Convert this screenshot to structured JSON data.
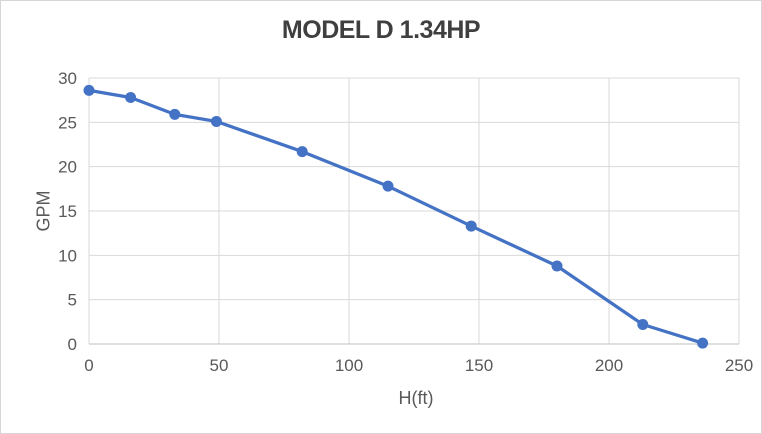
{
  "frame": {
    "border_color": "#d6d6d6",
    "background": "#ffffff"
  },
  "chart_data": {
    "type": "line",
    "title": "MODEL D 1.34HP",
    "xlabel": "H(ft)",
    "ylabel": "GPM",
    "x": [
      0,
      16,
      33,
      49,
      82,
      115,
      147,
      180,
      213,
      236
    ],
    "y": [
      28.6,
      27.8,
      25.9,
      25.1,
      21.7,
      17.8,
      13.3,
      8.8,
      2.2,
      0.1
    ],
    "xlim": [
      0,
      250
    ],
    "ylim": [
      0,
      30
    ],
    "x_ticks": [
      0,
      50,
      100,
      150,
      200,
      250
    ],
    "y_ticks": [
      0,
      5,
      10,
      15,
      20,
      25,
      30
    ],
    "grid": true,
    "legend": false,
    "marker": "circle",
    "colors": {
      "line": "#4472c4",
      "marker": "#4472c4",
      "grid": "#d9d9d9",
      "axis": "#bfbfbf",
      "tick_text": "#595959",
      "title_text": "#3f3f3f",
      "axis_title_text": "#595959"
    }
  }
}
